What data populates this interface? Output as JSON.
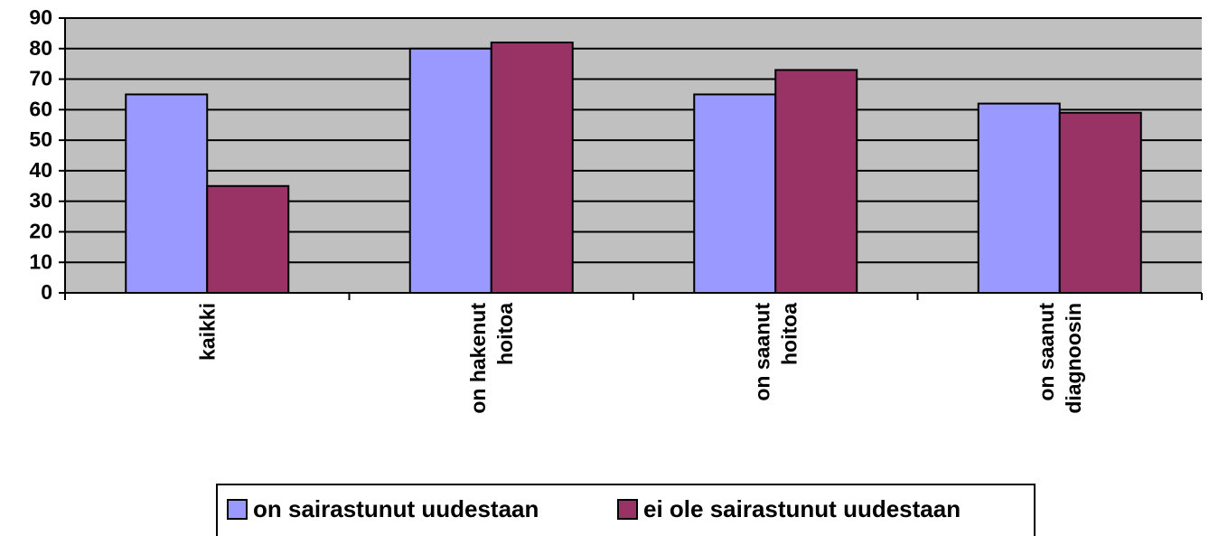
{
  "chart_data": {
    "type": "bar",
    "categories": [
      "kaikki",
      "on hakenut hoitoa",
      "on saanut hoitoa",
      "on saanut diagnoosin"
    ],
    "series": [
      {
        "name": "on sairastunut uudestaan",
        "color": "#9999ff",
        "values": [
          65,
          80,
          65,
          62
        ]
      },
      {
        "name": "ei ole sairastunut uudestaan",
        "color": "#993366",
        "values": [
          35,
          82,
          73,
          59
        ]
      }
    ],
    "ylim": [
      0,
      90
    ],
    "yticks": [
      0,
      10,
      20,
      30,
      40,
      50,
      60,
      70,
      80,
      90
    ],
    "grid": true,
    "plot_background": "#c0c0c0",
    "legend": "bottom"
  }
}
